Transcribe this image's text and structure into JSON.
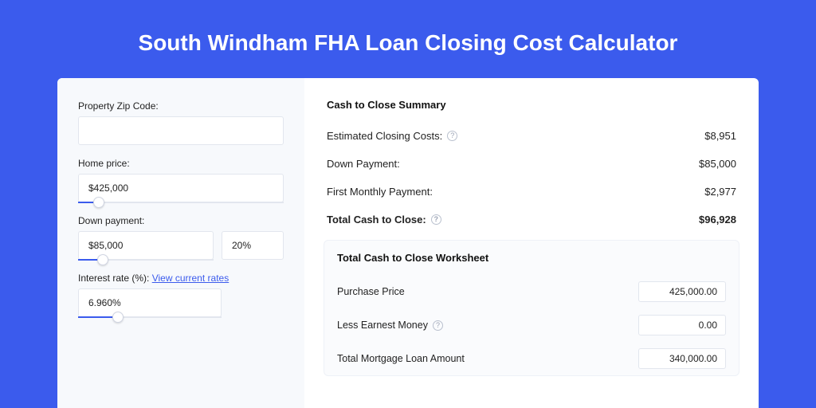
{
  "colors": {
    "brand": "#3b5bed",
    "page_bg": "#3b5bed",
    "card_bg": "#ffffff",
    "panel_bg": "#f7f9fc",
    "border": "#e2e6ee",
    "text": "#222222"
  },
  "header": {
    "title": "South Windham FHA Loan Closing Cost Calculator"
  },
  "inputs": {
    "zip": {
      "label": "Property Zip Code:",
      "value": ""
    },
    "price": {
      "label": "Home price:",
      "value": "$425,000",
      "slider_pct": 10
    },
    "down": {
      "label": "Down payment:",
      "value": "$85,000",
      "pct_value": "20%",
      "slider_pct": 18
    },
    "rate": {
      "label": "Interest rate (%):",
      "link_text": "View current rates",
      "value": "6.960%",
      "slider_pct": 28
    }
  },
  "summary": {
    "title": "Cash to Close Summary",
    "rows": [
      {
        "label": "Estimated Closing Costs:",
        "help": true,
        "value": "$8,951",
        "bold": false
      },
      {
        "label": "Down Payment:",
        "help": false,
        "value": "$85,000",
        "bold": false
      },
      {
        "label": "First Monthly Payment:",
        "help": false,
        "value": "$2,977",
        "bold": false
      },
      {
        "label": "Total Cash to Close:",
        "help": true,
        "value": "$96,928",
        "bold": true
      }
    ]
  },
  "worksheet": {
    "title": "Total Cash to Close Worksheet",
    "rows": [
      {
        "label": "Purchase Price",
        "help": false,
        "value": "425,000.00"
      },
      {
        "label": "Less Earnest Money",
        "help": true,
        "value": "0.00"
      },
      {
        "label": "Total Mortgage Loan Amount",
        "help": false,
        "value": "340,000.00"
      }
    ]
  }
}
